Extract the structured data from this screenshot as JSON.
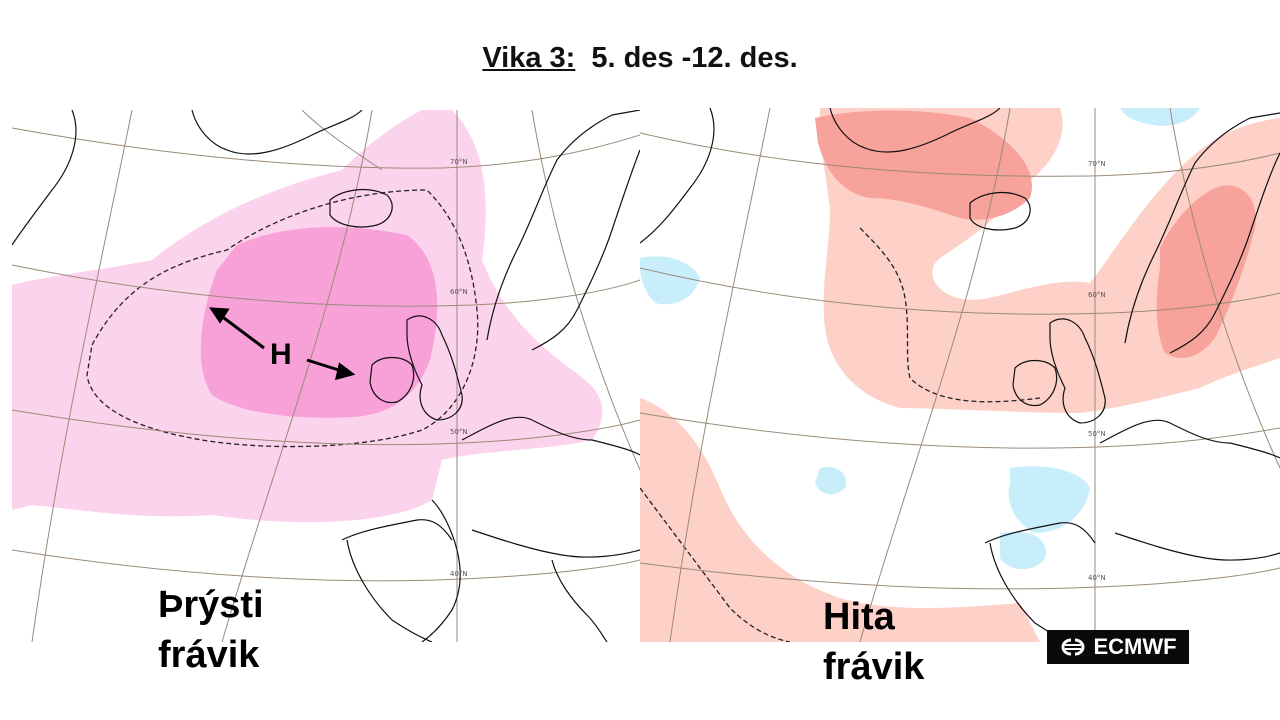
{
  "title": {
    "week_label": "Vika 3:",
    "date_range": "5. des -12. des."
  },
  "left_map": {
    "caption_line1": "Þrýsti",
    "caption_line2": "frávik",
    "high_label": "H",
    "lat_labels": [
      "70°N",
      "60°N",
      "50°N",
      "40°N"
    ],
    "colors": {
      "light_anomaly": "#fcd3ec",
      "strong_anomaly": "#f8a0d8",
      "weak_cold": "#cdeffc"
    }
  },
  "right_map": {
    "caption_line1": "Hita",
    "caption_line2": "frávik",
    "lat_labels": [
      "70°N",
      "60°N",
      "50°N",
      "40°N"
    ],
    "colors": {
      "warm_anomaly": "#fdd0c8",
      "strong_warm_anomaly": "#f7a29a",
      "cold_anomaly": "#c9eefb"
    }
  },
  "logo": {
    "text": "ECMWF"
  }
}
